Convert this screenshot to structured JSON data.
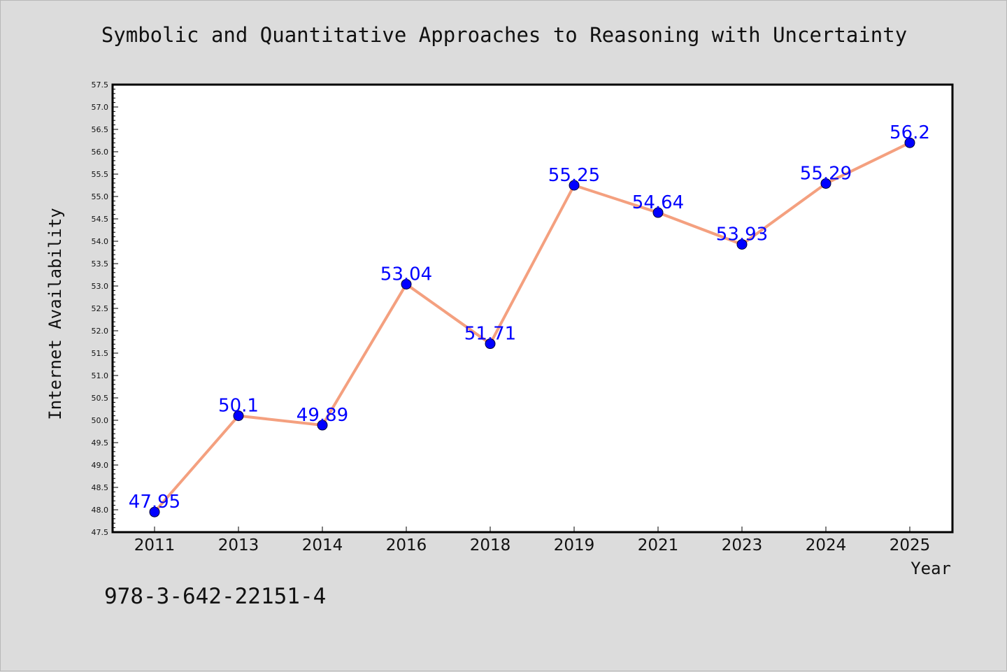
{
  "title": "Symbolic and Quantitative Approaches to Reasoning with Uncertainty",
  "footer_text": "978-3-642-22151-4",
  "colors": {
    "background": "#dcdcdc",
    "plot_background": "#ffffff",
    "line": "#f4a07f",
    "marker": "#0000ff",
    "data_label": "#0000ff",
    "axis": "#000000"
  },
  "chart_data": {
    "type": "line",
    "title": "Symbolic and Quantitative Approaches to Reasoning with Uncertainty",
    "xlabel": "Year",
    "ylabel": "Internet Availability",
    "categories": [
      "2011",
      "2013",
      "2014",
      "2016",
      "2018",
      "2019",
      "2021",
      "2023",
      "2024",
      "2025"
    ],
    "series": [
      {
        "values": [
          47.95,
          50.1,
          49.89,
          53.04,
          51.71,
          55.25,
          54.64,
          53.93,
          55.29,
          56.2
        ],
        "labels": [
          "47.95",
          "50.1",
          "49.89",
          "53.04",
          "51.71",
          "55.25",
          "54.64",
          "53.93",
          "55.29",
          "56.2"
        ]
      }
    ],
    "ylim": [
      47.5,
      57.5
    ],
    "yticks": [
      "47.5",
      "48.0",
      "48.5",
      "49.0",
      "49.5",
      "50.0",
      "50.5",
      "51.0",
      "51.5",
      "52.0",
      "52.5",
      "53.0",
      "53.5",
      "54.0",
      "54.5",
      "55.0",
      "55.5",
      "56.0",
      "56.5",
      "57.0",
      "57.5"
    ],
    "grid": false,
    "legend": "none"
  }
}
